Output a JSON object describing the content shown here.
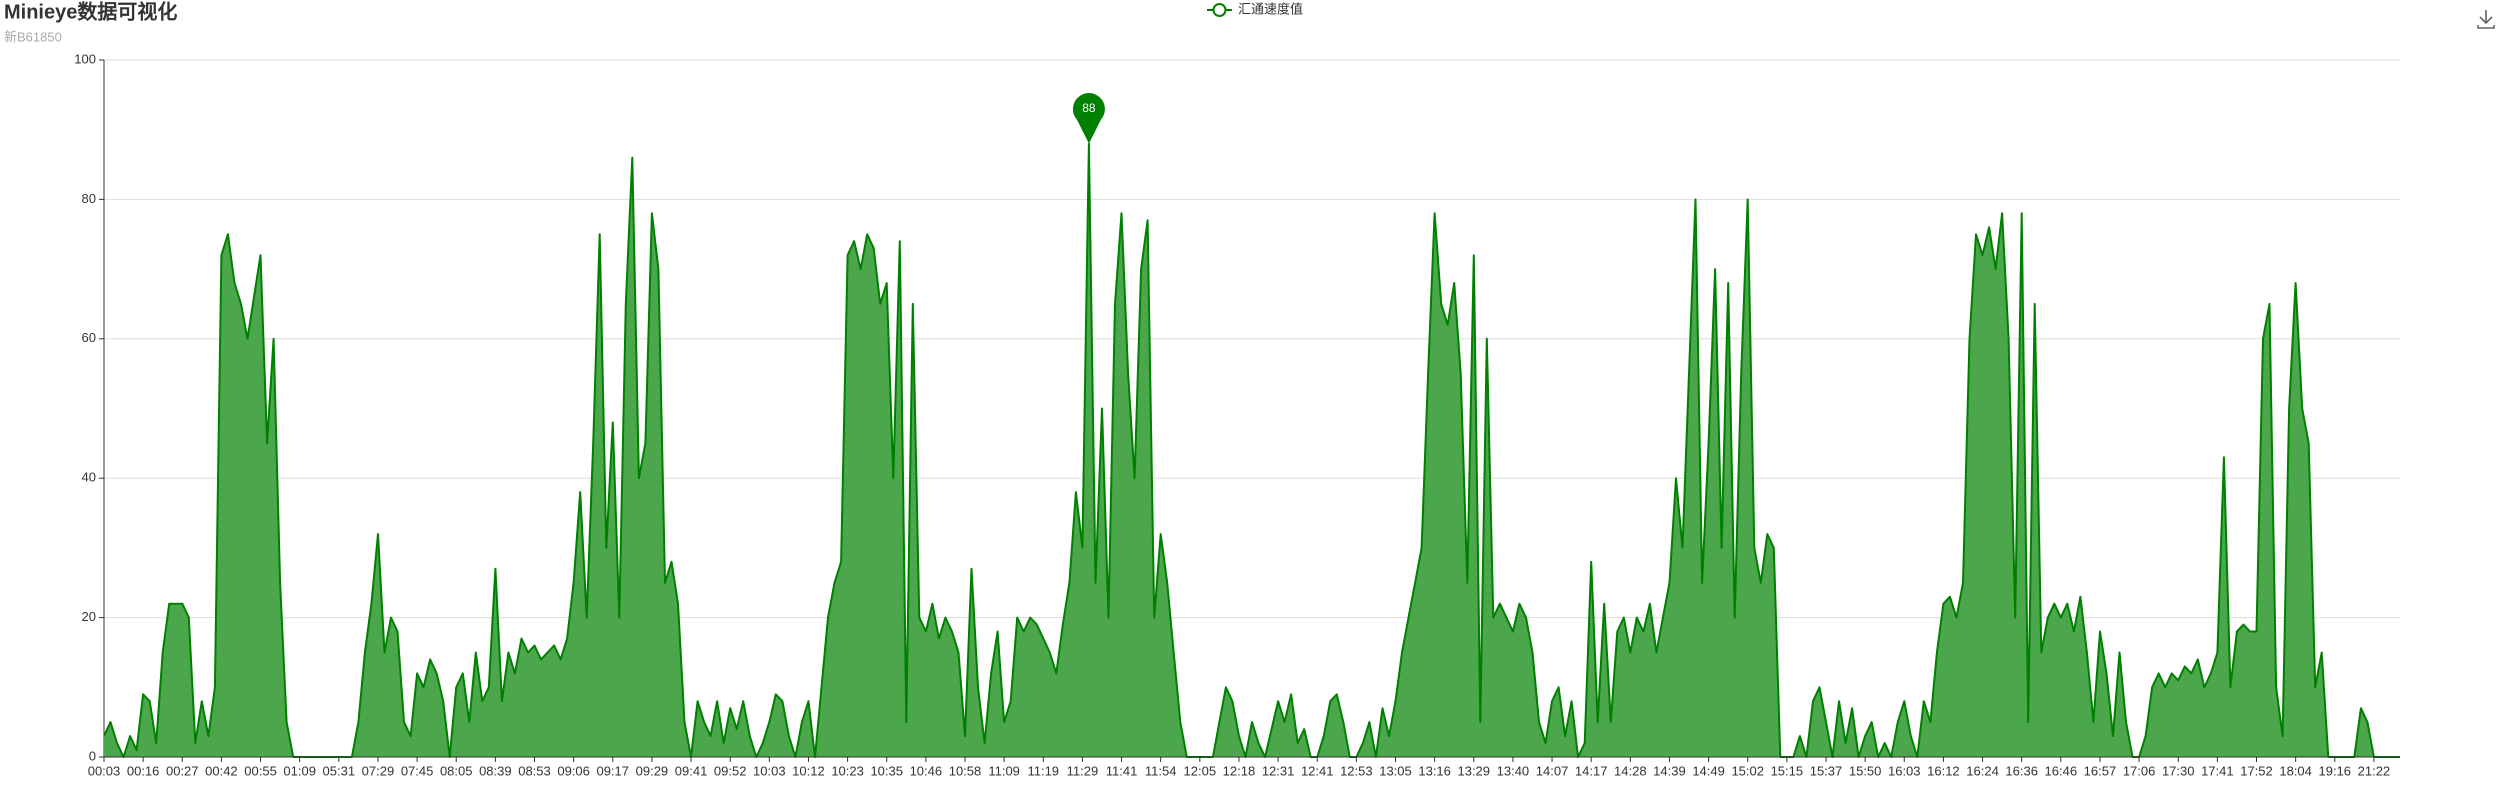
{
  "chart_data": {
    "type": "line",
    "title": "Minieye数据可视化",
    "subtitle": "新B61850",
    "ylim": [
      0,
      100
    ],
    "yticks": [
      0,
      20,
      40,
      60,
      80,
      100
    ],
    "grid": true,
    "area": true,
    "legend": "top",
    "categories": [
      "00:03",
      null,
      null,
      null,
      null,
      null,
      "00:16",
      null,
      null,
      null,
      null,
      null,
      "00:27",
      null,
      null,
      null,
      null,
      null,
      "00:42",
      null,
      null,
      null,
      null,
      null,
      "00:55",
      null,
      null,
      null,
      null,
      null,
      "01:09",
      null,
      null,
      null,
      null,
      null,
      "05:31",
      null,
      null,
      null,
      null,
      null,
      "07:29",
      null,
      null,
      null,
      null,
      null,
      "07:45",
      null,
      null,
      null,
      null,
      null,
      "08:05",
      null,
      null,
      null,
      null,
      null,
      "08:39",
      null,
      null,
      null,
      null,
      null,
      "08:53",
      null,
      null,
      null,
      null,
      null,
      "09:06",
      null,
      null,
      null,
      null,
      null,
      "09:17",
      null,
      null,
      null,
      null,
      null,
      "09:29",
      null,
      null,
      null,
      null,
      null,
      "09:41",
      null,
      null,
      null,
      null,
      null,
      "09:52",
      null,
      null,
      null,
      null,
      null,
      "10:03",
      null,
      null,
      null,
      null,
      null,
      "10:12",
      null,
      null,
      null,
      null,
      null,
      "10:23",
      null,
      null,
      null,
      null,
      null,
      "10:35",
      null,
      null,
      null,
      null,
      null,
      "10:46",
      null,
      null,
      null,
      null,
      null,
      "10:58",
      null,
      null,
      null,
      null,
      null,
      "11:09",
      null,
      null,
      null,
      null,
      null,
      "11:19",
      null,
      null,
      null,
      null,
      null,
      "11:29",
      null,
      null,
      null,
      null,
      null,
      "11:41",
      null,
      null,
      null,
      null,
      null,
      "11:54",
      null,
      null,
      null,
      null,
      null,
      "12:05",
      null,
      null,
      null,
      null,
      null,
      "12:18",
      null,
      null,
      null,
      null,
      null,
      "12:31",
      null,
      null,
      null,
      null,
      null,
      "12:41",
      null,
      null,
      null,
      null,
      null,
      "12:53",
      null,
      null,
      null,
      null,
      null,
      "13:05",
      null,
      null,
      null,
      null,
      null,
      "13:16",
      null,
      null,
      null,
      null,
      null,
      "13:29",
      null,
      null,
      null,
      null,
      null,
      "13:40",
      null,
      null,
      null,
      null,
      null,
      "14:07",
      null,
      null,
      null,
      null,
      null,
      "14:17",
      null,
      null,
      null,
      null,
      null,
      "14:28",
      null,
      null,
      null,
      null,
      null,
      "14:39",
      null,
      null,
      null,
      null,
      null,
      "14:49",
      null,
      null,
      null,
      null,
      null,
      "15:02",
      null,
      null,
      null,
      null,
      null,
      "15:15",
      null,
      null,
      null,
      null,
      null,
      "15:37",
      null,
      null,
      null,
      null,
      null,
      "15:50",
      null,
      null,
      null,
      null,
      null,
      "16:03",
      null,
      null,
      null,
      null,
      null,
      "16:12",
      null,
      null,
      null,
      null,
      null,
      "16:24",
      null,
      null,
      null,
      null,
      null,
      "16:36",
      null,
      null,
      null,
      null,
      null,
      "16:46",
      null,
      null,
      null,
      null,
      null,
      "16:57",
      null,
      null,
      null,
      null,
      null,
      "17:06",
      null,
      null,
      null,
      null,
      null,
      "17:30",
      null,
      null,
      null,
      null,
      null,
      "17:41",
      null,
      null,
      null,
      null,
      null,
      "17:52",
      null,
      null,
      null,
      null,
      null,
      "18:04",
      null,
      null,
      null,
      null,
      null,
      "19:16",
      null,
      null,
      null,
      null,
      null,
      "21:22",
      null,
      null,
      null,
      null
    ],
    "series": [
      {
        "name": "汇通速度值",
        "color": "#008000",
        "area_color": "#4ca64c",
        "values": [
          3,
          5,
          2,
          0,
          3,
          1,
          9,
          8,
          2,
          15,
          22,
          22,
          22,
          20,
          2,
          8,
          3,
          10,
          72,
          75,
          68,
          65,
          60,
          66,
          72,
          45,
          60,
          25,
          5,
          0,
          0,
          0,
          0,
          0,
          0,
          0,
          0,
          0,
          0,
          5,
          15,
          22,
          32,
          15,
          20,
          18,
          5,
          3,
          12,
          10,
          14,
          12,
          8,
          0,
          10,
          12,
          5,
          15,
          8,
          10,
          27,
          8,
          15,
          12,
          17,
          15,
          16,
          14,
          15,
          16,
          14,
          17,
          25,
          38,
          20,
          45,
          75,
          30,
          48,
          20,
          65,
          86,
          40,
          45,
          78,
          70,
          25,
          28,
          22,
          5,
          0,
          8,
          5,
          3,
          8,
          2,
          7,
          4,
          8,
          3,
          0,
          2,
          5,
          9,
          8,
          3,
          0,
          5,
          8,
          0,
          10,
          20,
          25,
          28,
          72,
          74,
          70,
          75,
          73,
          65,
          68,
          40,
          74,
          5,
          65,
          20,
          18,
          22,
          17,
          20,
          18,
          15,
          3,
          27,
          10,
          2,
          12,
          18,
          5,
          8,
          20,
          18,
          20,
          19,
          17,
          15,
          12,
          19,
          25,
          38,
          30,
          88,
          25,
          50,
          20,
          65,
          78,
          55,
          40,
          70,
          77,
          20,
          32,
          25,
          15,
          5,
          0,
          0,
          0,
          0,
          0,
          5,
          10,
          8,
          3,
          0,
          5,
          2,
          0,
          4,
          8,
          5,
          9,
          2,
          4,
          0,
          0,
          3,
          8,
          9,
          5,
          0,
          0,
          2,
          5,
          0,
          7,
          3,
          8,
          15,
          20,
          25,
          30,
          55,
          78,
          65,
          62,
          68,
          55,
          25,
          72,
          5,
          60,
          20,
          22,
          20,
          18,
          22,
          20,
          15,
          5,
          2,
          8,
          10,
          3,
          8,
          0,
          2,
          28,
          5,
          22,
          5,
          18,
          20,
          15,
          20,
          18,
          22,
          15,
          20,
          25,
          40,
          30,
          55,
          80,
          25,
          45,
          70,
          30,
          68,
          20,
          55,
          80,
          30,
          25,
          32,
          30,
          0,
          0,
          0,
          3,
          0,
          8,
          10,
          5,
          0,
          8,
          2,
          7,
          0,
          3,
          5,
          0,
          2,
          0,
          5,
          8,
          3,
          0,
          8,
          5,
          15,
          22,
          23,
          20,
          25,
          60,
          75,
          72,
          76,
          70,
          78,
          60,
          20,
          78,
          5,
          65,
          15,
          20,
          22,
          20,
          22,
          18,
          23,
          15,
          5,
          18,
          12,
          3,
          15,
          5,
          0,
          0,
          3,
          10,
          12,
          10,
          12,
          11,
          13,
          12,
          14,
          10,
          12,
          15,
          43,
          10,
          18,
          19,
          18,
          18,
          60,
          65,
          10,
          3,
          50,
          68,
          50,
          45,
          10,
          15,
          0,
          0,
          0,
          0,
          0,
          7,
          5,
          0,
          0,
          0,
          0,
          0
        ]
      }
    ]
  }
}
